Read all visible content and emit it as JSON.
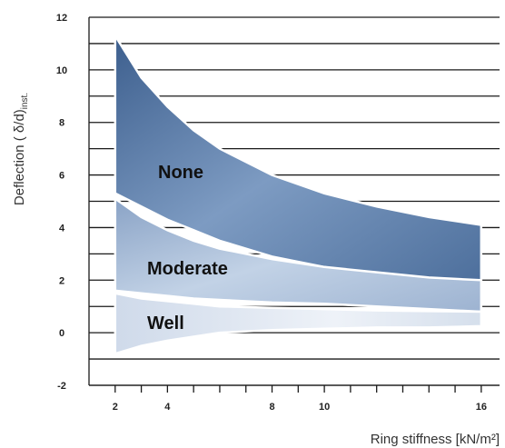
{
  "chart_data": {
    "type": "area",
    "xlabel": "Ring stiffness [kN/m²]",
    "ylabel_main": "Deflection ( δ/d)",
    "ylabel_sub": "inst.",
    "ylim": [
      -2,
      12
    ],
    "xlim": [
      1,
      16.7
    ],
    "yticks": [
      -2,
      0,
      2,
      4,
      6,
      8,
      10,
      12
    ],
    "xticks": [
      2,
      4,
      8,
      10,
      16
    ],
    "grid": "horizontal",
    "x": [
      2,
      3,
      4,
      5,
      6,
      8,
      10,
      12,
      14,
      16
    ],
    "series": [
      {
        "name": "None",
        "color": "#4f739f",
        "lower": [
          5.3,
          4.8,
          4.3,
          3.9,
          3.5,
          2.9,
          2.5,
          2.2,
          2.0,
          1.9
        ],
        "upper": [
          11.3,
          9.7,
          8.6,
          7.7,
          7.0,
          6.0,
          5.3,
          4.8,
          4.4,
          4.1
        ]
      },
      {
        "name": "Moderate",
        "color": "#9fb4d1",
        "lower": [
          1.6,
          1.5,
          1.4,
          1.3,
          1.25,
          1.15,
          1.1,
          1.0,
          0.9,
          0.8
        ],
        "upper": [
          5.1,
          4.4,
          3.9,
          3.5,
          3.2,
          2.8,
          2.5,
          2.3,
          2.1,
          2.0
        ]
      },
      {
        "name": "Well",
        "color": "#d9e3ef",
        "lower": [
          -0.8,
          -0.5,
          -0.3,
          -0.15,
          0.0,
          0.1,
          0.15,
          0.2,
          0.2,
          0.25
        ],
        "upper": [
          1.5,
          1.3,
          1.2,
          1.1,
          1.0,
          0.95,
          0.9,
          0.85,
          0.82,
          0.8
        ]
      }
    ]
  }
}
